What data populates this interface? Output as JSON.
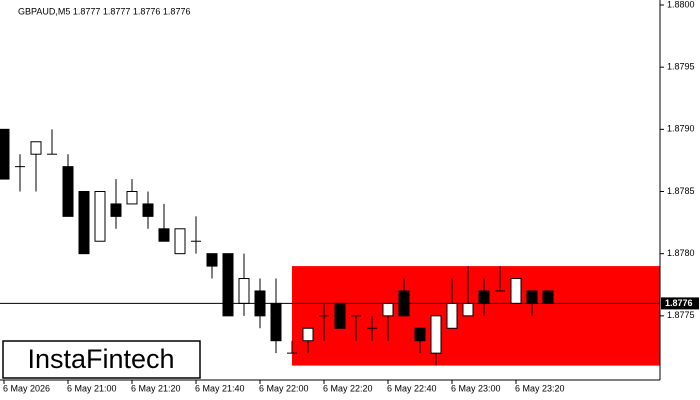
{
  "chart_data": {
    "type": "candlestick",
    "title": "GBPAUD,M5  1.8777 1.8777 1.8776 1.8776",
    "categories": [
      "6 May 2026",
      null,
      null,
      null,
      "6 May 21:00",
      null,
      null,
      null,
      "6 May 21:20",
      null,
      null,
      null,
      "6 May 21:40",
      null,
      null,
      null,
      "6 May 22:00",
      null,
      null,
      null,
      "6 May 22:20",
      null,
      null,
      null,
      "6 May 22:40",
      null,
      null,
      null,
      "6 May 23:00",
      null,
      null,
      null,
      "6 May 23:20",
      null,
      null
    ],
    "open": [
      1.879,
      1.8787,
      1.8788,
      1.8788,
      1.8787,
      1.8785,
      1.8781,
      1.8784,
      1.8784,
      1.8784,
      1.8782,
      1.878,
      1.8781,
      1.878,
      1.878,
      1.8776,
      1.8777,
      1.8776,
      1.8772,
      1.8773,
      1.8775,
      1.8776,
      1.8775,
      1.8774,
      1.8775,
      1.8777,
      1.8774,
      1.8772,
      1.8774,
      1.8775,
      1.8777,
      1.8777,
      1.8776,
      1.8777,
      1.8777
    ],
    "high": [
      1.879,
      1.8788,
      1.8789,
      1.879,
      1.8788,
      1.8785,
      1.8785,
      1.8786,
      1.8786,
      1.8785,
      1.8784,
      1.8782,
      1.8783,
      1.878,
      1.878,
      1.878,
      1.8778,
      1.8778,
      1.8773,
      1.8774,
      1.8776,
      1.8776,
      1.8775,
      1.8775,
      1.8776,
      1.8778,
      1.8774,
      1.8775,
      1.8778,
      1.8779,
      1.8778,
      1.8779,
      1.8778,
      1.8777,
      1.8777
    ],
    "low": [
      1.8786,
      1.8785,
      1.8785,
      1.8788,
      1.8783,
      1.878,
      1.8781,
      1.8782,
      1.8784,
      1.8782,
      1.8781,
      1.878,
      1.878,
      1.8778,
      1.8775,
      1.8775,
      1.8774,
      1.8772,
      1.8772,
      1.8772,
      1.8773,
      1.8774,
      1.8773,
      1.8773,
      1.8773,
      1.8775,
      1.8772,
      1.8771,
      1.8774,
      1.8775,
      1.8775,
      1.8777,
      1.8776,
      1.8775,
      1.8776
    ],
    "close": [
      1.8786,
      1.8787,
      1.8789,
      1.8788,
      1.8783,
      1.878,
      1.8785,
      1.8783,
      1.8785,
      1.8783,
      1.8781,
      1.8782,
      1.8781,
      1.8779,
      1.8775,
      1.8778,
      1.8775,
      1.8773,
      1.8772,
      1.8774,
      1.8775,
      1.8774,
      1.8775,
      1.8774,
      1.8776,
      1.8775,
      1.8773,
      1.8775,
      1.8776,
      1.8776,
      1.8776,
      1.8777,
      1.8778,
      1.8776,
      1.8776
    ],
    "up_color": "#ffffff",
    "down_color": "#000000",
    "zone": {
      "ylim": [
        1.8771,
        1.8779
      ],
      "color": "#ff0000"
    },
    "last_price": 1.8776,
    "ylim": [
      1.877,
      1.88
    ],
    "yticks": [
      1.8775,
      {
        "value": 1.878,
        "label": "1.8780"
      },
      1.8785,
      {
        "value": 1.879,
        "label": "1.8790"
      },
      1.8795,
      {
        "value": 1.88,
        "label": "1.8800"
      }
    ],
    "watermark": "InstaFintech"
  }
}
